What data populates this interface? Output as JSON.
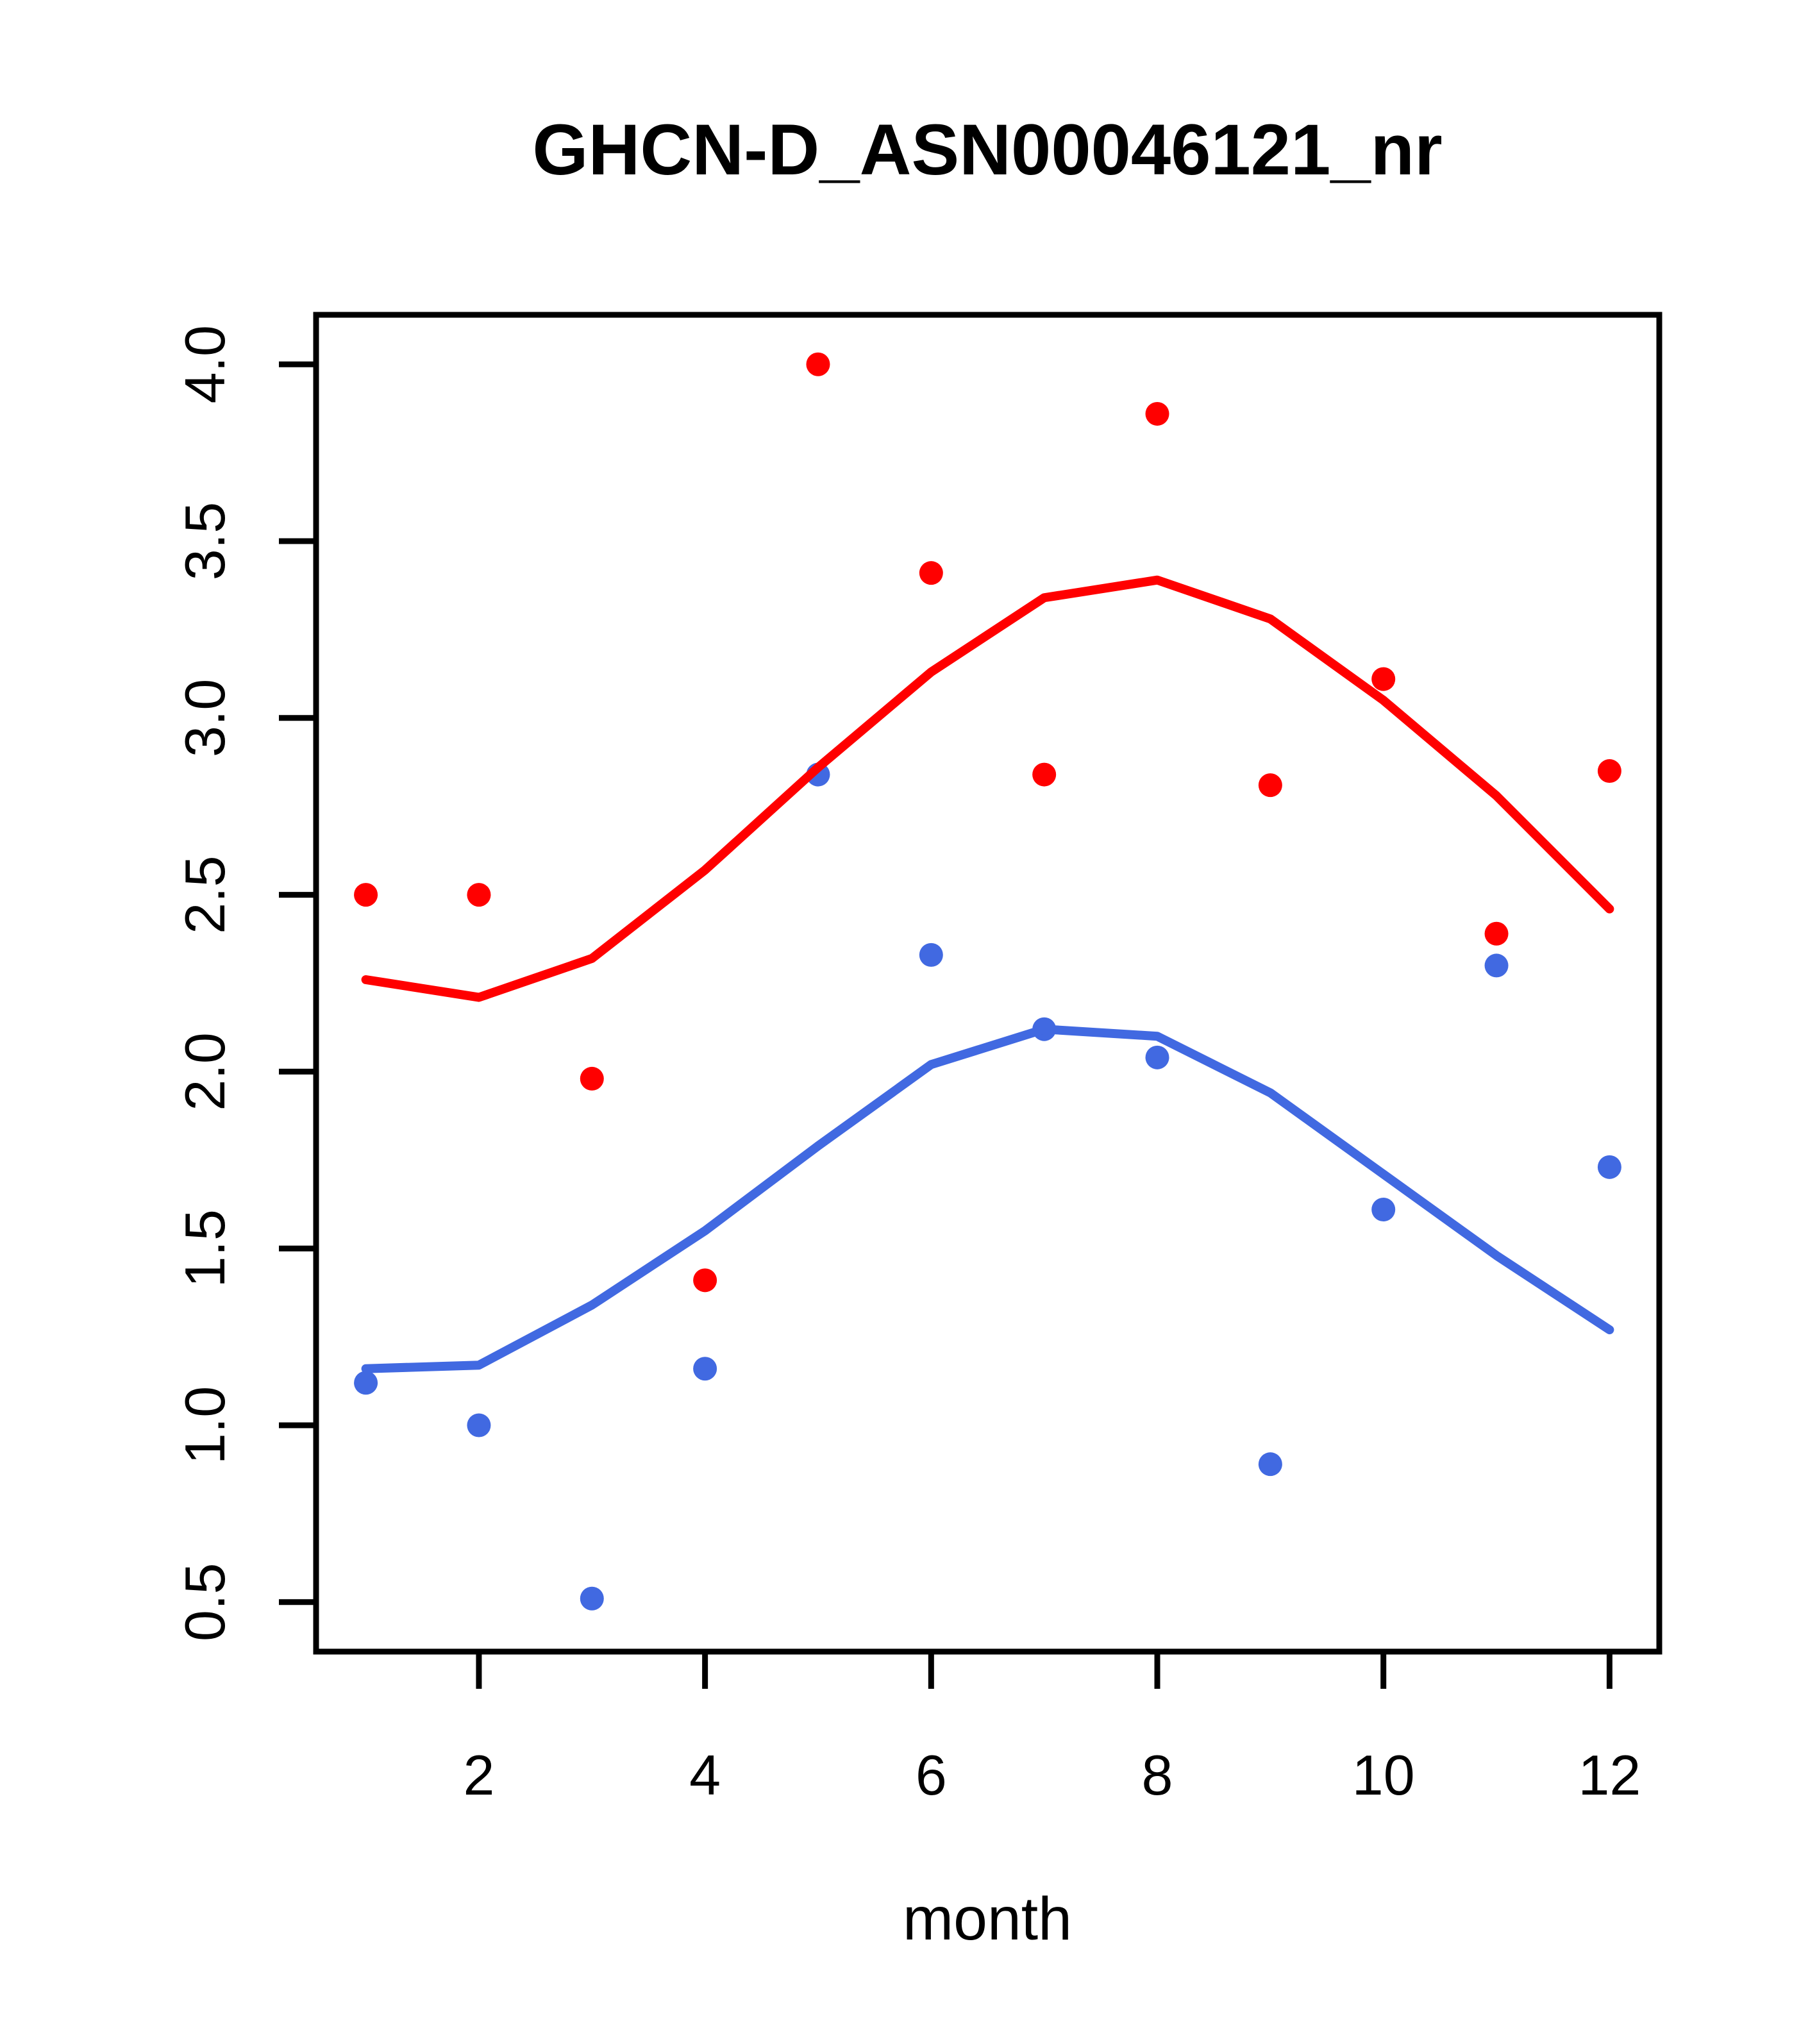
{
  "title": "GHCN-D_ASN00046121_nr",
  "xlabel": "month",
  "colors": {
    "red_series": "#FF0000",
    "blue_series": "#4169E1",
    "axis": "#000000"
  },
  "chart_data": {
    "type": "scatter",
    "x": [
      1,
      2,
      3,
      4,
      5,
      6,
      7,
      8,
      9,
      10,
      11,
      12
    ],
    "series": [
      {
        "name": "red-points",
        "kind": "points",
        "color": "#FF0000",
        "values": [
          2.5,
          2.5,
          1.98,
          1.41,
          4.0,
          3.41,
          2.84,
          3.86,
          2.81,
          3.11,
          2.39,
          2.85
        ]
      },
      {
        "name": "blue-points",
        "kind": "points",
        "color": "#4169E1",
        "values": [
          1.12,
          1.0,
          0.51,
          1.16,
          2.84,
          2.33,
          2.12,
          2.04,
          0.89,
          1.61,
          2.3,
          1.73
        ]
      },
      {
        "name": "red-lowess",
        "kind": "line",
        "color": "#FF0000",
        "values": [
          2.26,
          2.21,
          2.32,
          2.57,
          2.86,
          3.13,
          3.34,
          3.39,
          3.28,
          3.05,
          2.78,
          2.46
        ]
      },
      {
        "name": "blue-lowess",
        "kind": "line",
        "color": "#4169E1",
        "values": [
          1.16,
          1.17,
          1.34,
          1.55,
          1.79,
          2.02,
          2.12,
          2.1,
          1.94,
          1.71,
          1.48,
          1.27
        ]
      }
    ],
    "title": "GHCN-D_ASN00046121_nr",
    "xlabel": "month",
    "ylabel": "",
    "xticks": [
      2,
      4,
      6,
      8,
      10,
      12
    ],
    "yticks": [
      0.5,
      1.0,
      1.5,
      2.0,
      2.5,
      3.0,
      3.5,
      4.0
    ],
    "xlim": [
      0.56,
      12.44
    ],
    "ylim": [
      0.36,
      4.14
    ],
    "grid": false,
    "legend": "none"
  }
}
